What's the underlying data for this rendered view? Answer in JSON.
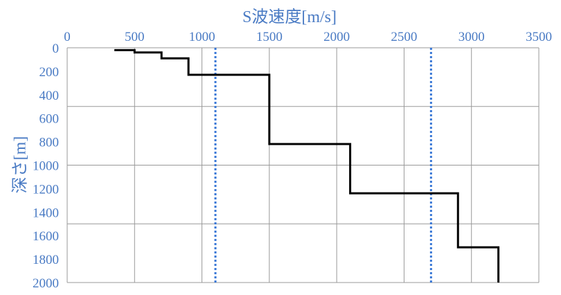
{
  "chart_data": {
    "type": "line",
    "xlabel": "S波速度[m/s]",
    "ylabel": "深さ[m]",
    "xlim": [
      0,
      3500
    ],
    "ylim": [
      0,
      2000
    ],
    "y_inverted": true,
    "x_axis_position": "top",
    "x_ticks": [
      "0",
      "500",
      "1000",
      "1500",
      "2000",
      "2500",
      "3000",
      "3500"
    ],
    "y_ticks": [
      "0",
      "200",
      "400",
      "600",
      "800",
      "1000",
      "1200",
      "1400",
      "1600",
      "1800",
      "2000"
    ],
    "grid": {
      "vertical_every": 500,
      "horizontal_every": 500
    },
    "colors": {
      "profile": "#000000",
      "reference": "#3a78d6",
      "axis_text": "#4a7bc4",
      "grid": "#999999"
    },
    "series": [
      {
        "style": "solid",
        "x": [
          350,
          500,
          500,
          700,
          700,
          900,
          900,
          1500,
          1500,
          2100,
          2100,
          2900,
          2900,
          3200,
          3200
        ],
        "y": [
          20,
          20,
          40,
          40,
          90,
          90,
          230,
          230,
          820,
          820,
          1240,
          1240,
          1700,
          1700,
          2000
        ]
      },
      {
        "style": "dotted",
        "x": [
          1100,
          1100
        ],
        "y": [
          0,
          2000
        ]
      },
      {
        "style": "dotted",
        "x": [
          2700,
          2700
        ],
        "y": [
          0,
          2000
        ]
      }
    ]
  }
}
